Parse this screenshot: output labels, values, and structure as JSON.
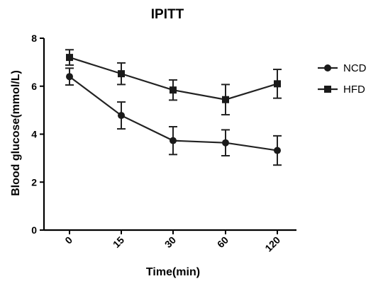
{
  "chart_data": {
    "type": "line",
    "title": "IPITT",
    "xlabel": "Time(min)",
    "ylabel": "Blood glucose(mmol/L)",
    "categories": [
      "0",
      "15",
      "30",
      "60",
      "120"
    ],
    "ylim": [
      0,
      8
    ],
    "yticks": [
      "0",
      "2",
      "4",
      "6",
      "8"
    ],
    "grid": false,
    "legend_position": "right",
    "series": [
      {
        "name": "NCD",
        "marker": "circle",
        "color": "#1a1a1a",
        "values": [
          6.4,
          4.78,
          3.73,
          3.64,
          3.32
        ],
        "errors": [
          0.35,
          0.56,
          0.58,
          0.54,
          0.61
        ]
      },
      {
        "name": "HFD",
        "marker": "square",
        "color": "#1a1a1a",
        "values": [
          7.2,
          6.52,
          5.84,
          5.44,
          6.1
        ],
        "errors": [
          0.32,
          0.45,
          0.42,
          0.63,
          0.6
        ]
      }
    ]
  }
}
